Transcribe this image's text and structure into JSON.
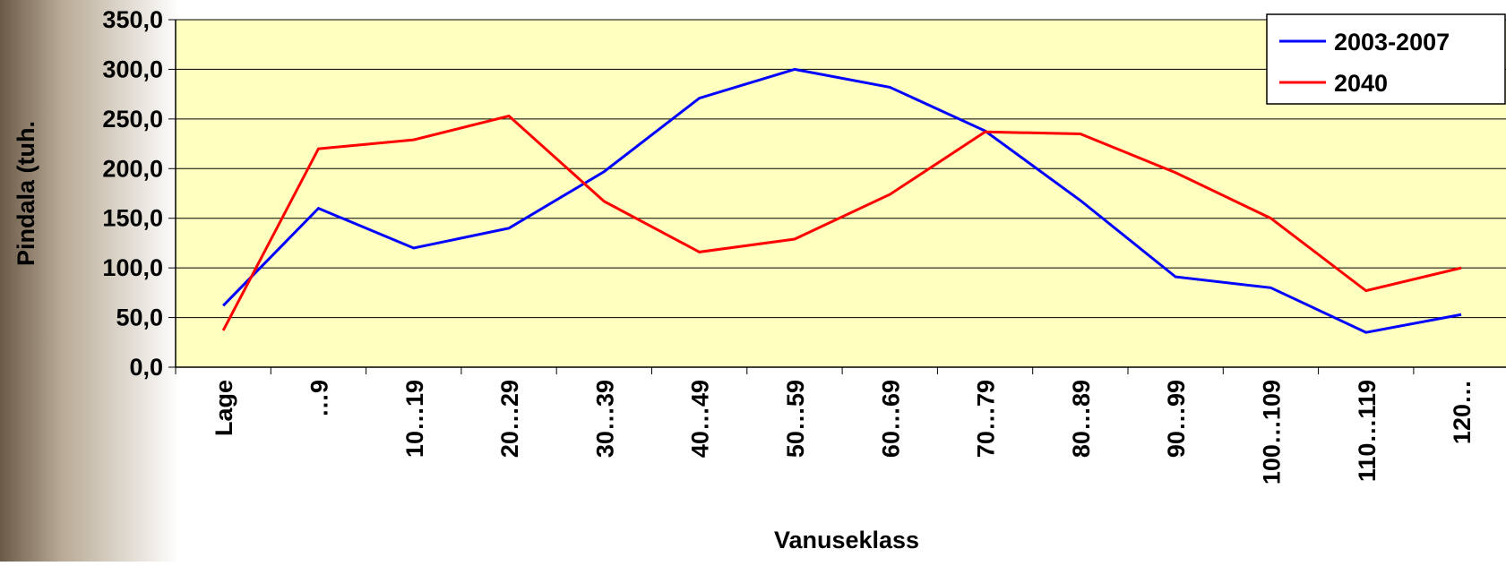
{
  "chart_data": {
    "type": "line",
    "x_label": "Vanuseklass",
    "y_label": "Pindala (tuh.",
    "categories": [
      "Lage",
      "…9",
      "10…19",
      "20…29",
      "30…39",
      "40…49",
      "50…59",
      "60…69",
      "70…79",
      "80…89",
      "90…99",
      "100…109",
      "110…119",
      "120…"
    ],
    "series": [
      {
        "name": "2003-2007",
        "color": "#0000ff",
        "values": [
          62,
          160,
          120,
          140,
          197,
          271,
          300,
          282,
          238,
          168,
          91,
          80,
          35,
          53
        ]
      },
      {
        "name": "2040",
        "color": "#ff0000",
        "values": [
          37,
          220,
          229,
          253,
          167,
          116,
          129,
          174,
          237,
          235,
          196,
          150,
          77,
          100
        ]
      }
    ],
    "ylim": [
      0,
      350
    ],
    "yticks": [
      {
        "value": 0,
        "label": "0,0"
      },
      {
        "value": 50,
        "label": "50,0"
      },
      {
        "value": 100,
        "label": "100,0"
      },
      {
        "value": 150,
        "label": "150,0"
      },
      {
        "value": 200,
        "label": "200,0"
      },
      {
        "value": 250,
        "label": "250,0"
      },
      {
        "value": 300,
        "label": "300,0"
      },
      {
        "value": 350,
        "label": "350,0"
      }
    ],
    "grid": true,
    "legend": "top-right",
    "plot_background": "#ffffc0"
  }
}
